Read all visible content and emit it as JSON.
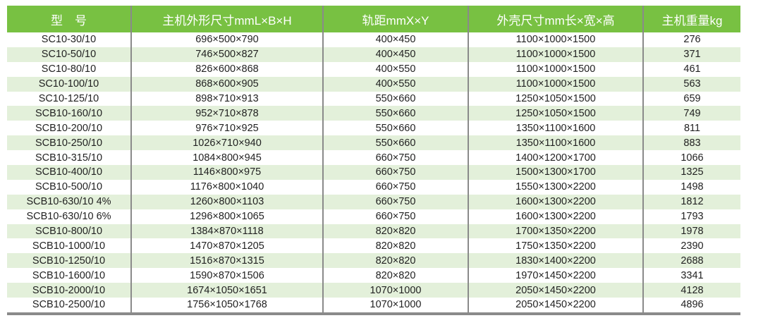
{
  "header_color": "#78c142",
  "stripe_color": "#e3f0da",
  "columns": [
    "型　号",
    "主机外形尺寸mmL×B×H",
    "轨距mmX×Y",
    "外壳尺寸mm长×宽×高",
    "主机重量kg"
  ],
  "rows": [
    [
      "SC10-30/10",
      "696×500×790",
      "400×450",
      "1100×1000×1500",
      "276"
    ],
    [
      "SC10-50/10",
      "746×500×827",
      "400×450",
      "1100×1000×1500",
      "371"
    ],
    [
      "SC10-80/10",
      "826×600×868",
      "400×550",
      "1100×1000×1500",
      "461"
    ],
    [
      "SC10-100/10",
      "868×600×905",
      "400×550",
      "1100×1000×1500",
      "563"
    ],
    [
      "SC10-125/10",
      "898×710×913",
      "550×660",
      "1250×1050×1500",
      "659"
    ],
    [
      "SCB10-160/10",
      "952×710×878",
      "550×660",
      "1250×1050×1500",
      "749"
    ],
    [
      "SCB10-200/10",
      "976×710×925",
      "550×660",
      "1350×1100×1600",
      "811"
    ],
    [
      "SCB10-250/10",
      "1026×710×940",
      "550×660",
      "1350×1100×1600",
      "883"
    ],
    [
      "SCB10-315/10",
      "1084×800×945",
      "660×750",
      "1400×1200×1700",
      "1066"
    ],
    [
      "SCB10-400/10",
      "1146×800×975",
      "660×750",
      "1500×1300×1700",
      "1325"
    ],
    [
      "SCB10-500/10",
      "1176×800×1040",
      "660×750",
      "1550×1300×2200",
      "1498"
    ],
    [
      "SCB10-630/10 4%",
      "1260×800×1103",
      "660×750",
      "1600×1300×2200",
      "1812"
    ],
    [
      "SCB10-630/10 6%",
      "1296×800×1065",
      "660×750",
      "1600×1300×2200",
      "1793"
    ],
    [
      "SCB10-800/10",
      "1384×870×1118",
      "820×820",
      "1700×1350×2200",
      "1978"
    ],
    [
      "SCB10-1000/10",
      "1470×870×1205",
      "820×820",
      "1750×1350×2200",
      "2390"
    ],
    [
      "SCB10-1250/10",
      "1516×870×1315",
      "820×820",
      "1830×1400×2200",
      "2688"
    ],
    [
      "SCB10-1600/10",
      "1590×870×1506",
      "820×820",
      "1970×1450×2200",
      "3341"
    ],
    [
      "SCB10-2000/10",
      "1674×1050×1651",
      "1070×1000",
      "2050×1450×2200",
      "4128"
    ],
    [
      "SCB10-2500/10",
      "1756×1050×1768",
      "1070×1000",
      "2050×1450×2200",
      "4896"
    ]
  ]
}
